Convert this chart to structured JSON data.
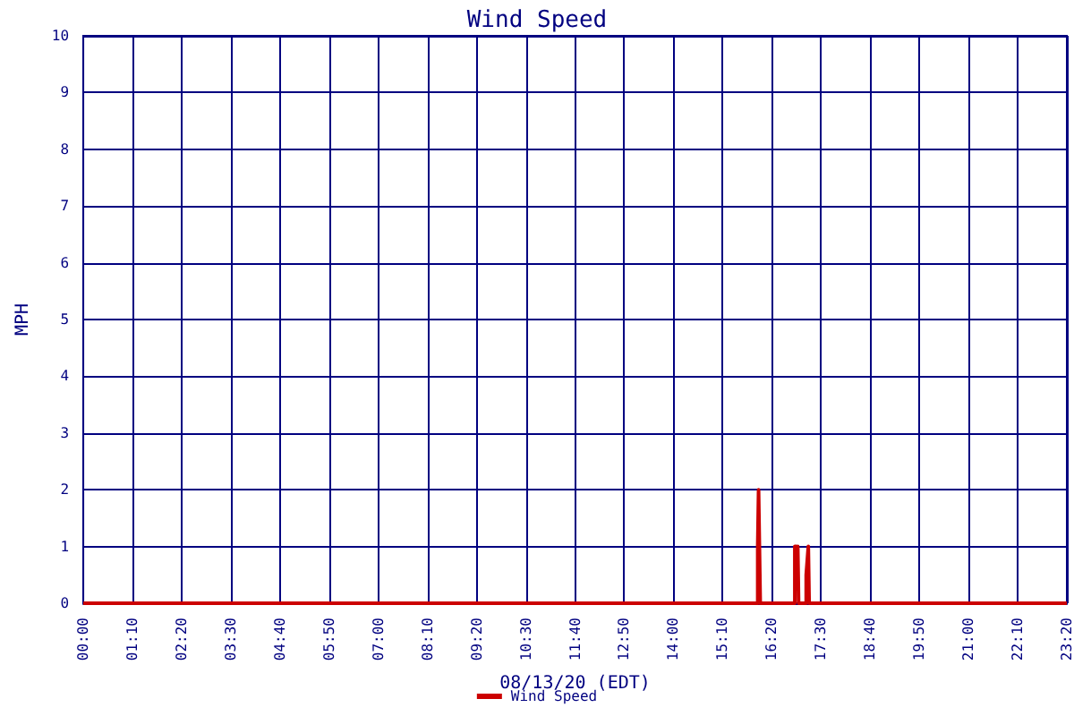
{
  "chart_data": {
    "type": "line",
    "title": "Wind Speed",
    "xlabel": "08/13/20 (EDT)",
    "ylabel": "MPH",
    "x": [
      0,
      16.0,
      16.0,
      16.02,
      16.04,
      16.06,
      16.88,
      16.88,
      16.92,
      16.93,
      16.95,
      16.97,
      17.15,
      17.15,
      17.2,
      17.22,
      23.3333
    ],
    "series": [
      {
        "name": "Wind Speed",
        "color": "#cc0000",
        "values": [
          0,
          0,
          1,
          2,
          1,
          0,
          0,
          1,
          1,
          0.5,
          1,
          0,
          0,
          0.5,
          1,
          0,
          0
        ]
      }
    ],
    "xlim": [
      0,
      23.3333
    ],
    "xticks": [
      {
        "value": 0,
        "label": "00:00"
      },
      {
        "value": 1.1667,
        "label": "01:10"
      },
      {
        "value": 2.3333,
        "label": "02:20"
      },
      {
        "value": 3.5,
        "label": "03:30"
      },
      {
        "value": 4.6667,
        "label": "04:40"
      },
      {
        "value": 5.8333,
        "label": "05:50"
      },
      {
        "value": 7,
        "label": "07:00"
      },
      {
        "value": 8.1667,
        "label": "08:10"
      },
      {
        "value": 9.3333,
        "label": "09:20"
      },
      {
        "value": 10.5,
        "label": "10:30"
      },
      {
        "value": 11.6667,
        "label": "11:40"
      },
      {
        "value": 12.8333,
        "label": "12:50"
      },
      {
        "value": 14,
        "label": "14:00"
      },
      {
        "value": 15.1667,
        "label": "15:10"
      },
      {
        "value": 16.3333,
        "label": "16:20"
      },
      {
        "value": 17.5,
        "label": "17:30"
      },
      {
        "value": 18.6667,
        "label": "18:40"
      },
      {
        "value": 19.8333,
        "label": "19:50"
      },
      {
        "value": 21,
        "label": "21:00"
      },
      {
        "value": 22.1667,
        "label": "22:10"
      },
      {
        "value": 23.3333,
        "label": "23:20"
      }
    ],
    "ylim": [
      0,
      10
    ],
    "yticks": [
      0,
      1,
      2,
      3,
      4,
      5,
      6,
      7,
      8,
      9,
      10
    ],
    "grid": true,
    "legend": "bottom",
    "marker": "none",
    "line_style": "solid"
  }
}
